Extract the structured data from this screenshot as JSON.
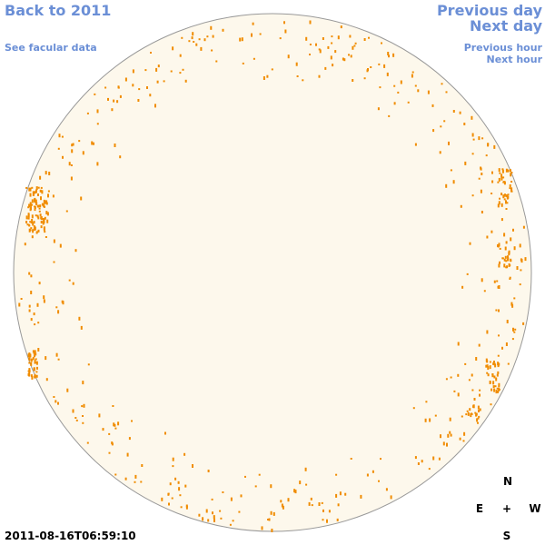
{
  "header": {
    "back_link": "Back to 2011",
    "data_link": "See facular data"
  },
  "navigation": {
    "previous_day": "Previous day",
    "next_day": "Next day",
    "previous_hour": "Previous hour",
    "next_hour": "Next hour"
  },
  "timestamp": "2011-08-16T06:59:10",
  "compass": {
    "north": "N",
    "east": "E",
    "center": "+",
    "west": "W",
    "south": "S"
  }
}
